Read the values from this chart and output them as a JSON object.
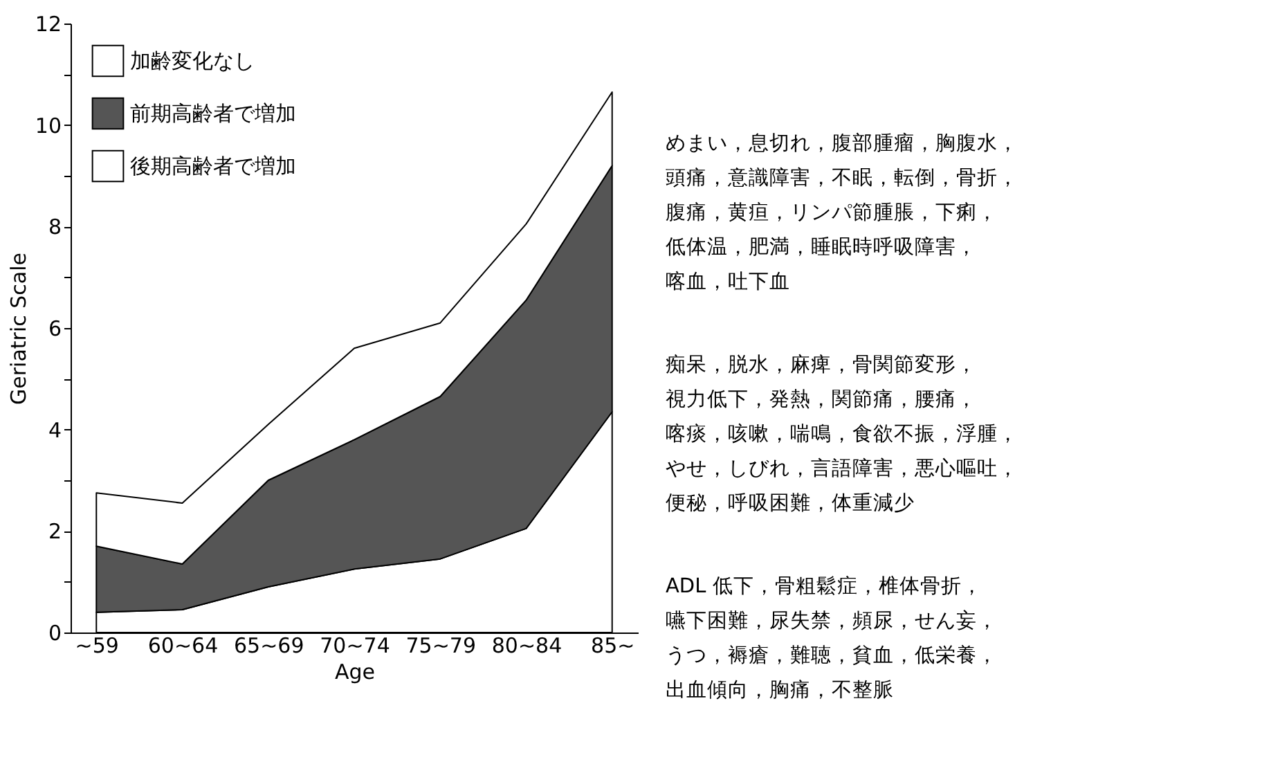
{
  "chart_data": {
    "type": "area",
    "stacked": true,
    "xlabel": "Age",
    "ylabel": "Geriatric Scale",
    "categories": [
      "~59",
      "60~64",
      "65~69",
      "70~74",
      "75~79",
      "80~84",
      "85~"
    ],
    "series": [
      {
        "name": "加齢変化なし",
        "color": "#ffffff",
        "values": [
          0.4,
          0.45,
          0.9,
          1.25,
          1.45,
          2.05,
          4.35
        ]
      },
      {
        "name": "前期高齢者で増加",
        "color": "#555555",
        "values": [
          1.3,
          0.9,
          2.1,
          2.55,
          3.2,
          4.5,
          4.85
        ]
      },
      {
        "name": "後期高齢者で増加",
        "color": "#ffffff",
        "values": [
          1.05,
          1.2,
          1.1,
          1.8,
          1.45,
          1.5,
          1.45
        ]
      }
    ],
    "ylim": [
      0,
      12
    ],
    "yticks": [
      0,
      {
        "value": 1,
        "label": null
      },
      2,
      {
        "value": 3,
        "label": null
      },
      4,
      {
        "value": 5,
        "label": null
      },
      6,
      {
        "value": 7,
        "label": null
      },
      8,
      {
        "value": 9,
        "label": null
      },
      10,
      {
        "value": 11,
        "label": null
      },
      12
    ],
    "grid": false,
    "legend": "top left",
    "annotations": [
      "めまい，息切れ，腹部腫瘤，胸腹水，頭痛，意識障害，不眠，転倒，骨折，腹痛，黄疸，リンパ節腫脹，下痢，低体温，肥満，睡眠時呼吸障害，喀血，吐下血",
      "痴呆，脱水，麻痺，骨関節変形，視力低下，発熱，関節痛，腰痛，喀痰，咳嗽，喘鳴，食欲不振，浮腫，やせ，しびれ，言語障害，悪心嘔吐，便秘，呼吸困難，体重減少",
      "ADL 低下，骨粗鬆症，椎体骨折，嚥下困難，尿失禁，頻尿，せん妄，うつ，褥瘡，難聴，貧血，低栄養，出血傾向，胸痛，不整脈"
    ]
  }
}
